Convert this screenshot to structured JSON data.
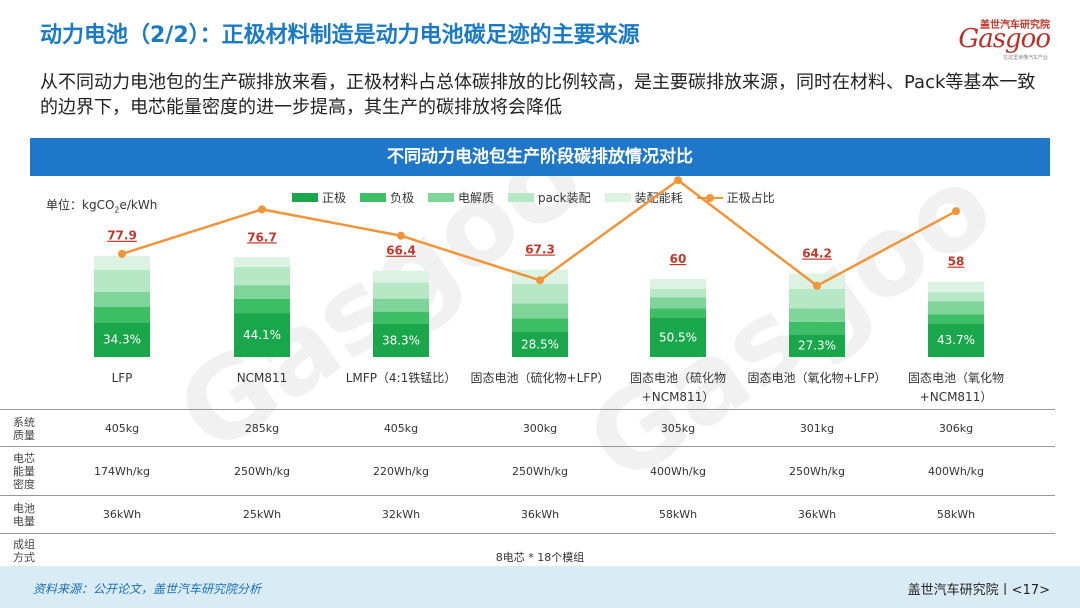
{
  "header": {
    "title": "动力电池（2/2）：正极材料制造是动力电池碳足迹的主要来源",
    "subtitle": "从不同动力电池包的生产碳排放来看，正极材料占总体碳排放的比例较高，是主要碳排放来源，同时在材料、Pack等基本一致的边界下，电芯能量密度的进一步提高，其生产的碳排放将会降低"
  },
  "logo": {
    "cn": "盖世汽车研究院",
    "en": "Gasgoo",
    "sub": "在这里读懂汽车产业"
  },
  "watermark": "Gasgoo",
  "banner": "不同动力电池包生产阶段碳排放情况对比",
  "unit_prefix": "单位：kgCO",
  "unit_sub": "2",
  "unit_suffix": "e/kWh",
  "chart_data": {
    "type": "bar",
    "stacked": true,
    "categories": [
      "LFP",
      "NCM811",
      "LMFP（4:1铁锰比）",
      "固态电池（硫化物+LFP）",
      "固态电池（硫化物+NCM811）",
      "固态电池（氧化物+LFP）",
      "固态电池（氧化物+NCM811）"
    ],
    "series": [
      {
        "name": "正极",
        "values": [
          26.7,
          33.8,
          25.4,
          19.2,
          30.3,
          17.5,
          25.9
        ]
      },
      {
        "name": "负极",
        "values": [
          12.0,
          11.0,
          9.5,
          10.5,
          7.0,
          9.5,
          7.0
        ]
      },
      {
        "name": "电解质",
        "values": [
          11.5,
          10.5,
          10.0,
          11.5,
          8.5,
          10.5,
          10.0
        ]
      },
      {
        "name": "pack装配",
        "values": [
          17.0,
          14.0,
          12.5,
          15.0,
          6.5,
          15.0,
          7.0
        ]
      },
      {
        "name": "装配能耗",
        "values": [
          10.7,
          7.4,
          9.0,
          11.1,
          7.7,
          11.7,
          8.1
        ]
      }
    ],
    "line": {
      "name": "正极占比",
      "values": [
        34.3,
        44.1,
        38.3,
        28.5,
        50.5,
        27.3,
        43.7
      ],
      "labels": [
        "34.3%",
        "44.1%",
        "38.3%",
        "28.5%",
        "50.5%",
        "27.3%",
        "43.7%"
      ]
    },
    "totals": [
      "77.9",
      "76.7",
      "66.4",
      "67.3",
      "60",
      "64.2",
      "58"
    ],
    "ylim": [
      0,
      100
    ],
    "colors": [
      "#1aa64a",
      "#3dbf66",
      "#7fd49a",
      "#b6e8c6",
      "#dcf3e4"
    ],
    "line_color": "#f0953a",
    "total_color": "#c0392b"
  },
  "table": {
    "rows": [
      {
        "label": "系统质量",
        "cells": [
          "405kg",
          "285kg",
          "405kg",
          "300kg",
          "305kg",
          "301kg",
          "306kg"
        ]
      },
      {
        "label": "电芯能量密度",
        "cells": [
          "174Wh/kg",
          "250Wh/kg",
          "220Wh/kg",
          "250Wh/kg",
          "400Wh/kg",
          "250Wh/kg",
          "400Wh/kg"
        ]
      },
      {
        "label": "电池电量",
        "cells": [
          "36kWh",
          "25kWh",
          "32kWh",
          "36kWh",
          "58kWh",
          "36kWh",
          "58kWh"
        ]
      },
      {
        "label": "成组方式",
        "merged": "8电芯 * 18个模组"
      }
    ]
  },
  "footer": {
    "source": "资料来源：公开论文，盖世汽车研究院分析",
    "page": "盖世汽车研究院丨<17>"
  }
}
